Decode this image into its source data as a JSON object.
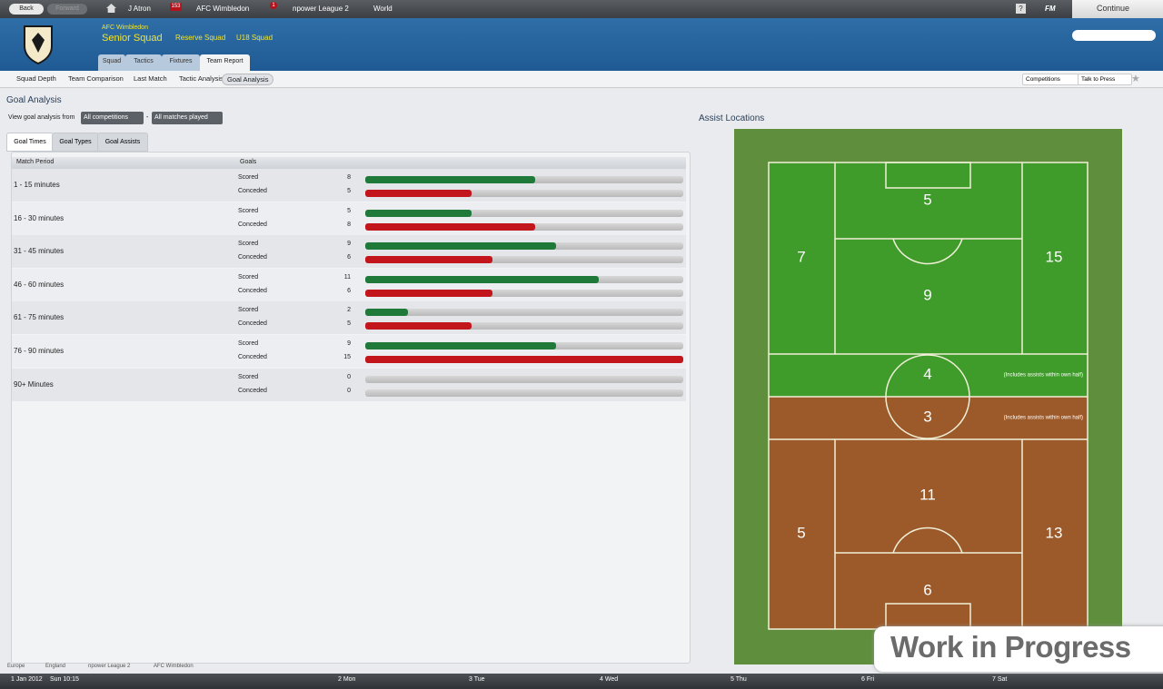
{
  "top_bar": {
    "back": "Back",
    "forward": "Forward",
    "manager": "J Atron",
    "inbox_count": "153",
    "club": "AFC Wimbledon",
    "news_count": "1",
    "league": "npower League 2",
    "world": "World",
    "help": "?",
    "fm": "FM",
    "continue": "Continue"
  },
  "header": {
    "club": "AFC Wimbledon",
    "squad": "Senior Squad",
    "links": [
      "Reserve Squad",
      "U18 Squad"
    ],
    "tabs": [
      "Squad",
      "Tactics",
      "Fixtures",
      "Team Report"
    ]
  },
  "subnav": {
    "items": [
      "Squad Depth",
      "Team Comparison",
      "Last Match",
      "Tactic Analysis",
      "Goal Analysis"
    ],
    "buttons": [
      "Competitions",
      "Talk to Press"
    ]
  },
  "goal_analysis": {
    "title": "Goal Analysis",
    "filter_label": "View goal analysis from",
    "filters": [
      "All competitions",
      "All matches played"
    ],
    "separator": "-",
    "tabs": [
      "Goal Times",
      "Goal Types",
      "Goal Assists"
    ],
    "columns": [
      "Match Period",
      "Goals"
    ],
    "row_labels": [
      "Scored",
      "Conceded"
    ],
    "rows": [
      {
        "period": "1 - 15 minutes",
        "scored": 8,
        "conceded": 5
      },
      {
        "period": "16 - 30 minutes",
        "scored": 5,
        "conceded": 8
      },
      {
        "period": "31 - 45 minutes",
        "scored": 9,
        "conceded": 6
      },
      {
        "period": "46 - 60 minutes",
        "scored": 11,
        "conceded": 6
      },
      {
        "period": "61 - 75 minutes",
        "scored": 2,
        "conceded": 5
      },
      {
        "period": "76 - 90 minutes",
        "scored": 9,
        "conceded": 15
      },
      {
        "period": "90+ Minutes",
        "scored": 0,
        "conceded": 0
      }
    ]
  },
  "assist_locations": {
    "title": "Assist Locations",
    "note": "(Includes assists within own half)",
    "zones": [
      5,
      7,
      15,
      9,
      4,
      3,
      11,
      5,
      13,
      6
    ]
  },
  "breadcrumb": [
    "Europe",
    "England",
    "npower League 2",
    "AFC Wimbledon"
  ],
  "calendar": {
    "date": "1 Jan 2012",
    "time": "Sun 10:15",
    "days": [
      "2 Mon",
      "3 Tue",
      "4 Wed",
      "5 Thu",
      "6 Fri",
      "7 Sat"
    ]
  },
  "watermark": "Work in Progress"
}
